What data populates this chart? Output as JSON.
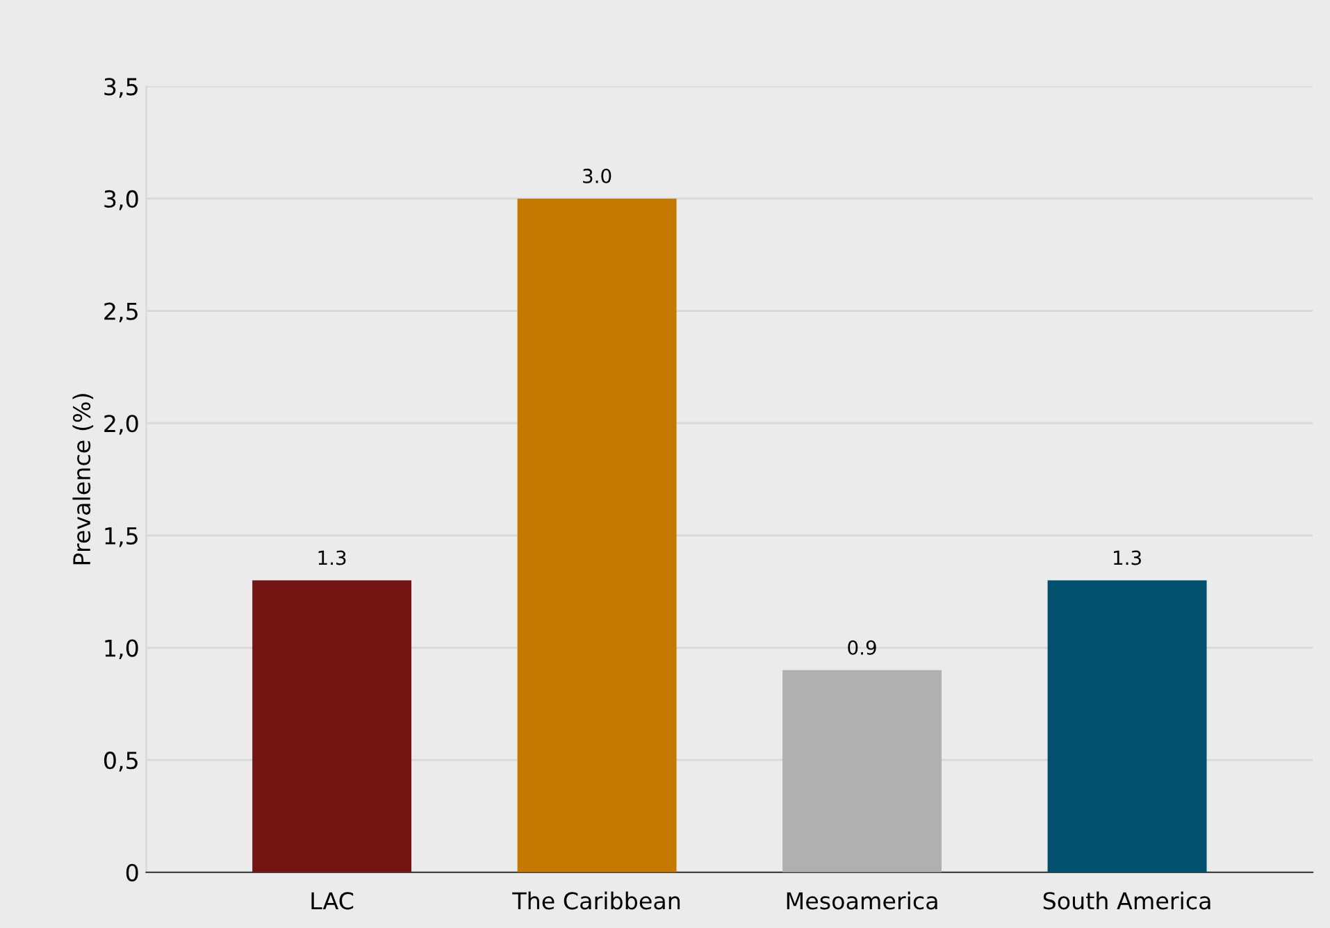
{
  "chart_data": {
    "type": "bar",
    "ylabel": "Prevalence (%)",
    "categories": [
      "LAC",
      "The Caribbean",
      "Mesoamerica",
      "South America"
    ],
    "values": [
      1.3,
      3.0,
      0.9,
      1.3
    ],
    "colors": [
      "#721513",
      "#c47a00",
      "#b0b0b0",
      "#00506e"
    ],
    "value_labels": [
      "1.3",
      "3.0",
      "0.9",
      "1.3"
    ],
    "ylim": [
      0,
      3.5
    ],
    "yticks": [
      {
        "value": 0,
        "label": "0"
      },
      {
        "value": 0.5,
        "label": "0,5"
      },
      {
        "value": 1,
        "label": "1,0"
      },
      {
        "value": 1.5,
        "label": "1,5"
      },
      {
        "value": 2,
        "label": "2,0"
      },
      {
        "value": 2.5,
        "label": "2,5"
      },
      {
        "value": 3,
        "label": "3,0"
      },
      {
        "value": 3.5,
        "label": "3,5"
      }
    ],
    "grid": "y",
    "legend": false
  }
}
